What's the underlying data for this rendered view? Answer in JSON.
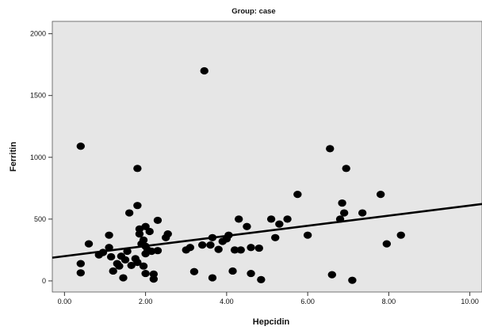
{
  "chart_data": {
    "type": "scatter",
    "title": "Group: case",
    "xlabel": "Hepcidin",
    "ylabel": "Ferritin",
    "xlim": [
      -0.3,
      10.3
    ],
    "ylim": [
      -90,
      2100
    ],
    "xticks": [
      0,
      2,
      4,
      6,
      8,
      10
    ],
    "xtick_labels": [
      "0.00",
      "2.00",
      "4.00",
      "6.00",
      "8.00",
      "10.00"
    ],
    "yticks": [
      0,
      500,
      1000,
      1500,
      2000
    ],
    "ytick_labels": [
      "0",
      "500",
      "1000",
      "1500",
      "2000"
    ],
    "grid": false,
    "background_color": "#e6e6e6",
    "point_color": "#000000",
    "fit_line": {
      "intercept": 200,
      "slope": 41
    },
    "series": [
      {
        "points": [
          [
            0.4,
            1090
          ],
          [
            0.4,
            140
          ],
          [
            0.4,
            65
          ],
          [
            0.6,
            300
          ],
          [
            0.85,
            210
          ],
          [
            0.95,
            230
          ],
          [
            1.1,
            370
          ],
          [
            1.1,
            270
          ],
          [
            1.15,
            195
          ],
          [
            1.2,
            80
          ],
          [
            1.3,
            140
          ],
          [
            1.35,
            120
          ],
          [
            1.4,
            200
          ],
          [
            1.45,
            25
          ],
          [
            1.5,
            170
          ],
          [
            1.55,
            240
          ],
          [
            1.6,
            550
          ],
          [
            1.65,
            125
          ],
          [
            1.75,
            180
          ],
          [
            1.8,
            150
          ],
          [
            1.8,
            910
          ],
          [
            1.8,
            610
          ],
          [
            1.85,
            420
          ],
          [
            1.85,
            380
          ],
          [
            1.9,
            300
          ],
          [
            1.95,
            330
          ],
          [
            1.95,
            120
          ],
          [
            2.0,
            60
          ],
          [
            2.0,
            220
          ],
          [
            2.0,
            280
          ],
          [
            2.0,
            440
          ],
          [
            2.05,
            250
          ],
          [
            2.1,
            400
          ],
          [
            2.15,
            240
          ],
          [
            2.2,
            15
          ],
          [
            2.2,
            55
          ],
          [
            2.3,
            245
          ],
          [
            2.3,
            490
          ],
          [
            2.5,
            350
          ],
          [
            2.55,
            380
          ],
          [
            3.0,
            250
          ],
          [
            3.1,
            270
          ],
          [
            3.2,
            75
          ],
          [
            3.4,
            290
          ],
          [
            3.45,
            1700
          ],
          [
            3.6,
            290
          ],
          [
            3.65,
            25
          ],
          [
            3.65,
            350
          ],
          [
            3.8,
            255
          ],
          [
            3.9,
            320
          ],
          [
            4.0,
            340
          ],
          [
            4.05,
            370
          ],
          [
            4.15,
            80
          ],
          [
            4.2,
            250
          ],
          [
            4.3,
            500
          ],
          [
            4.35,
            250
          ],
          [
            4.5,
            440
          ],
          [
            4.6,
            270
          ],
          [
            4.6,
            60
          ],
          [
            4.8,
            265
          ],
          [
            4.85,
            10
          ],
          [
            5.1,
            500
          ],
          [
            5.2,
            350
          ],
          [
            5.3,
            460
          ],
          [
            5.5,
            500
          ],
          [
            5.75,
            700
          ],
          [
            6.0,
            370
          ],
          [
            6.55,
            1070
          ],
          [
            6.6,
            50
          ],
          [
            6.8,
            500
          ],
          [
            6.85,
            630
          ],
          [
            6.9,
            550
          ],
          [
            6.95,
            910
          ],
          [
            7.1,
            5
          ],
          [
            7.35,
            550
          ],
          [
            7.8,
            700
          ],
          [
            7.95,
            300
          ],
          [
            8.3,
            370
          ]
        ]
      }
    ]
  }
}
